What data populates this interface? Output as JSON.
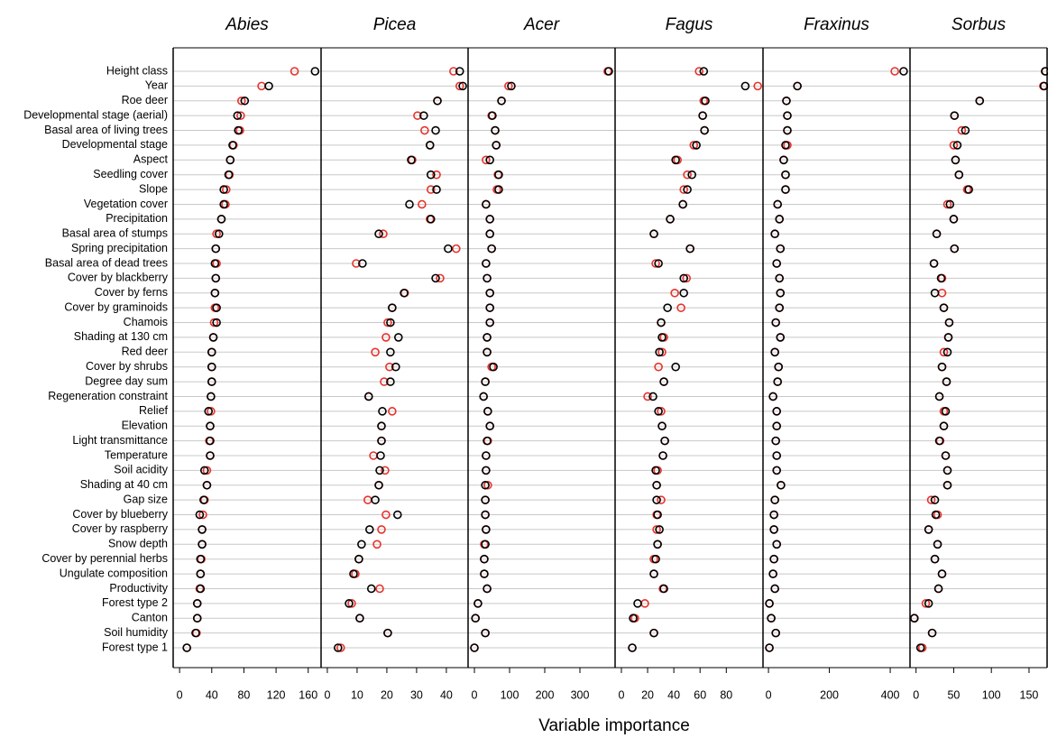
{
  "chart_data": {
    "type": "dot",
    "x_label": "Variable importance",
    "categories": [
      "Height class",
      "Year",
      "Roe deer",
      "Developmental stage (aerial)",
      "Basal area of living trees",
      "Developmental stage",
      "Aspect",
      "Seedling cover",
      "Slope",
      "Vegetation cover",
      "Precipitation",
      "Basal area of stumps",
      "Spring precipitation",
      "Basal area of dead trees",
      "Cover by blackberry",
      "Cover by ferns",
      "Cover by graminoids",
      "Chamois",
      "Shading at 130 cm",
      "Red deer",
      "Cover by shrubs",
      "Degree day sum",
      "Regeneration constraint",
      "Relief",
      "Elevation",
      "Light transmittance",
      "Temperature",
      "Soil acidity",
      "Shading at 40 cm",
      "Gap size",
      "Cover by blueberry",
      "Cover by raspberry",
      "Snow depth",
      "Cover by perennial herbs",
      "Ungulate composition",
      "Productivity",
      "Forest type 2",
      "Canton",
      "Soil humidity",
      "Forest type 1"
    ],
    "panels": [
      {
        "title": "Abies",
        "xlim": [
          -8,
          176
        ],
        "xticks": [
          0,
          40,
          80,
          120,
          160
        ],
        "series": [
          {
            "color": "#e8322b",
            "values": [
              143,
              102,
              77,
              76,
              75,
              67,
              63,
              62,
              58,
              57,
              52,
              46,
              45,
              46,
              45,
              44,
              44,
              43,
              42,
              40,
              40,
              40,
              39,
              39,
              38,
              37,
              38,
              34,
              34,
              31,
              29,
              28,
              28,
              27,
              26,
              25,
              22,
              22,
              21,
              9
            ]
          },
          {
            "color": "#000000",
            "values": [
              168.5,
              111,
              81,
              72,
              73,
              66,
              63,
              61,
              55,
              55,
              52,
              49,
              45,
              44,
              45,
              44,
              46,
              46,
              42,
              40,
              40,
              40,
              39,
              36,
              38,
              38,
              38,
              31,
              34,
              30,
              25,
              28,
              28,
              26,
              26,
              26,
              22,
              22,
              20,
              9
            ]
          }
        ]
      },
      {
        "title": "Picea",
        "xlim": [
          -2.1,
          47.3
        ],
        "xticks": [
          0,
          10,
          20,
          30,
          40
        ],
        "series": [
          {
            "color": "#e8322b",
            "values": [
              42.4,
              44.5,
              37,
              30.3,
              32.7,
              34.5,
              28.5,
              36.7,
              34.8,
              31.8,
              34.5,
              18.8,
              43.3,
              9.7,
              37.9,
              26,
              21.8,
              20.3,
              19.7,
              16.1,
              20.9,
              19.1,
              13.9,
              21.8,
              18.2,
              18.2,
              15.5,
              19.4,
              17.3,
              13.6,
              19.7,
              18.2,
              16.7,
              10.6,
              9.4,
              17.6,
              8.2,
              10.9,
              20.3,
              4.5
            ]
          },
          {
            "color": "#000000",
            "values": [
              44.5,
              45.5,
              37,
              32.4,
              36.4,
              34.5,
              28.2,
              34.8,
              36.7,
              27.6,
              34.8,
              17.3,
              40.6,
              11.8,
              36.4,
              25.8,
              21.8,
              21.2,
              23.9,
              21.2,
              23,
              21.2,
              13.9,
              18.5,
              18.2,
              18.2,
              17.9,
              17.6,
              17.3,
              16.1,
              23.6,
              14.2,
              11.5,
              10.6,
              8.8,
              14.8,
              7.3,
              10.9,
              20.3,
              3.6
            ]
          }
        ]
      },
      {
        "title": "Acer",
        "xlim": [
          -18,
          400
        ],
        "xticks": [
          0,
          100,
          200,
          300
        ],
        "series": [
          {
            "color": "#e8322b",
            "values": [
              379,
              97,
              77,
              49,
              59,
              62,
              33,
              67,
              64,
              33,
              44,
              44,
              49,
              33,
              36,
              44,
              44,
              44,
              36,
              36,
              49,
              31,
              26,
              38,
              44,
              38,
              33,
              33,
              38,
              31,
              31,
              33,
              28,
              28,
              28,
              36,
              10,
              3,
              31,
              0
            ]
          },
          {
            "color": "#000000",
            "values": [
              382,
              105,
              77,
              51,
              59,
              62,
              44,
              69,
              69,
              33,
              44,
              44,
              49,
              33,
              36,
              44,
              44,
              44,
              36,
              36,
              54,
              31,
              26,
              38,
              44,
              36,
              33,
              33,
              31,
              31,
              31,
              33,
              31,
              28,
              28,
              36,
              10,
              3,
              31,
              0
            ]
          }
        ]
      },
      {
        "title": "Fagus",
        "xlim": [
          -4.8,
          108
        ],
        "xticks": [
          0,
          20,
          40,
          60,
          80
        ],
        "series": [
          {
            "color": "#e8322b",
            "values": [
              59.3,
              104,
              62.8,
              62,
              63.4,
              55.2,
              42.8,
              50.3,
              47.6,
              46.9,
              37.2,
              24.8,
              52.4,
              26.2,
              49.7,
              40.7,
              45.5,
              30.3,
              32.4,
              31,
              28.3,
              32.4,
              20,
              30.3,
              31,
              33.1,
              31.7,
              27.6,
              26.9,
              30.3,
              26.9,
              26.9,
              27.6,
              24.8,
              24.8,
              31.7,
              17.9,
              10.3,
              24.8,
              8.3
            ]
          },
          {
            "color": "#000000",
            "values": [
              62.8,
              94.5,
              64,
              62,
              63.4,
              57.2,
              41.4,
              53.8,
              50.3,
              46.9,
              37.2,
              24.8,
              52.4,
              28.3,
              47.6,
              47.6,
              35.2,
              30.3,
              31,
              29,
              41.4,
              32.4,
              24.1,
              28.3,
              31,
              33.1,
              31.7,
              26.2,
              26.9,
              26.9,
              27.6,
              29,
              27.6,
              26.2,
              24.8,
              32.4,
              12.4,
              9,
              24.8,
              8.3
            ]
          }
        ]
      },
      {
        "title": "Fraxinus",
        "xlim": [
          -18,
          465
        ],
        "xticks": [
          0,
          200,
          400
        ],
        "series": [
          {
            "color": "#e8322b",
            "values": [
              415,
              95,
              59,
              62,
              62,
              62,
              50,
              56,
              56,
              30,
              36,
              21,
              39,
              27,
              36,
              39,
              36,
              24,
              39,
              21,
              33,
              30,
              15,
              27,
              27,
              24,
              27,
              27,
              41,
              21,
              18,
              18,
              27,
              18,
              15,
              21,
              3,
              9,
              24,
              3
            ]
          },
          {
            "color": "#000000",
            "values": [
              444,
              95,
              59,
              62,
              62,
              56,
              50,
              56,
              56,
              30,
              36,
              21,
              39,
              27,
              36,
              39,
              36,
              24,
              39,
              21,
              33,
              30,
              15,
              27,
              27,
              24,
              27,
              27,
              41,
              21,
              18,
              18,
              27,
              18,
              15,
              21,
              3,
              9,
              24,
              3
            ]
          }
        ]
      },
      {
        "title": "Sorbus",
        "xlim": [
          -8,
          174
        ],
        "xticks": [
          0,
          50,
          100,
          150
        ],
        "series": [
          {
            "color": "#e8322b",
            "values": [
              172,
              169,
              84.5,
              51,
              60.7,
              50,
              52.4,
              57,
              68,
              41.7,
              50,
              27.4,
              51,
              23.8,
              34.5,
              34.5,
              36.9,
              44,
              42.9,
              36.9,
              34.5,
              40.5,
              31,
              36.9,
              36.9,
              32,
              39.3,
              41.7,
              41.7,
              20.2,
              28.6,
              16.7,
              28.6,
              25,
              34.5,
              29.8,
              13,
              -2,
              21.4,
              8.3
            ]
          },
          {
            "color": "#000000",
            "values": [
              171.4,
              170,
              84.5,
              51,
              65.5,
              54.8,
              52.4,
              57,
              70,
              45,
              50,
              27.4,
              51,
              23.8,
              33.3,
              25,
              36.9,
              44,
              42.9,
              41.7,
              34.5,
              40.5,
              31,
              39.3,
              36.9,
              31,
              39.3,
              41.7,
              41.7,
              25,
              26.2,
              16.7,
              28.6,
              25,
              34.5,
              29.8,
              16.7,
              -2.4,
              21.4,
              6
            ]
          }
        ]
      }
    ]
  }
}
